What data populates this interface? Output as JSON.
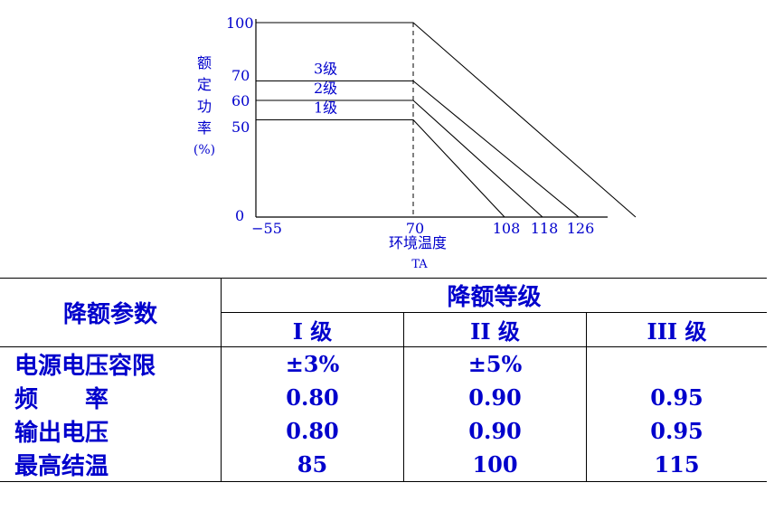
{
  "chart_data": {
    "type": "line",
    "title": "",
    "ylabel_chars": [
      "额",
      "定",
      "功",
      "率",
      "(%)"
    ],
    "xlabel": "环境温度",
    "xlabel_sub": "TA",
    "x_ticks": [
      "−55",
      "70",
      "108",
      "118",
      "126"
    ],
    "y_ticks": [
      "0",
      "50",
      "60",
      "70",
      "100"
    ],
    "series": [
      {
        "name": "1级",
        "x": [
          -55,
          70,
          108
        ],
        "y": [
          50,
          50,
          0
        ]
      },
      {
        "name": "2级",
        "x": [
          -55,
          70,
          118
        ],
        "y": [
          60,
          60,
          0
        ]
      },
      {
        "name": "3级",
        "x": [
          -55,
          70,
          126
        ],
        "y": [
          70,
          70,
          0
        ]
      },
      {
        "x": [
          -55,
          70,
          150
        ],
        "y": [
          100,
          100,
          0
        ]
      }
    ],
    "vline_x": 70,
    "colors": {
      "text": "#0000cc",
      "line": "#000000"
    }
  },
  "table": {
    "param_header": "降额参数",
    "group_header": "降额等级",
    "levels": [
      "I 级",
      "II 级",
      "III 级"
    ],
    "rows": [
      {
        "label": "电源电压容限",
        "values": [
          "±3%",
          "±5%",
          ""
        ]
      },
      {
        "label": "频　　率",
        "values": [
          "0.80",
          "0.90",
          "0.95"
        ]
      },
      {
        "label": "输出电压",
        "values": [
          "0.80",
          "0.90",
          "0.95"
        ]
      },
      {
        "label": "最高结温",
        "values": [
          "85",
          "100",
          "115"
        ]
      }
    ]
  }
}
